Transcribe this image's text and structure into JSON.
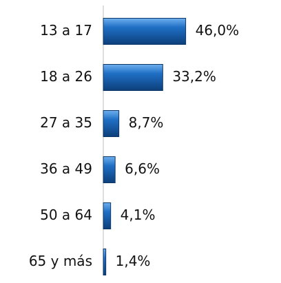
{
  "chart_data": {
    "type": "bar",
    "orientation": "horizontal",
    "categories": [
      "13 a 17",
      "18 a 26",
      "27 a 35",
      "36 a 49",
      "50 a 64",
      "65 y más"
    ],
    "values": [
      46.0,
      33.2,
      8.7,
      6.6,
      4.1,
      1.4
    ],
    "value_labels": [
      "46,0%",
      "33,2%",
      "8,7%",
      "6,6%",
      "4,1%",
      "1,4%"
    ],
    "color": "#1f6fc5"
  }
}
